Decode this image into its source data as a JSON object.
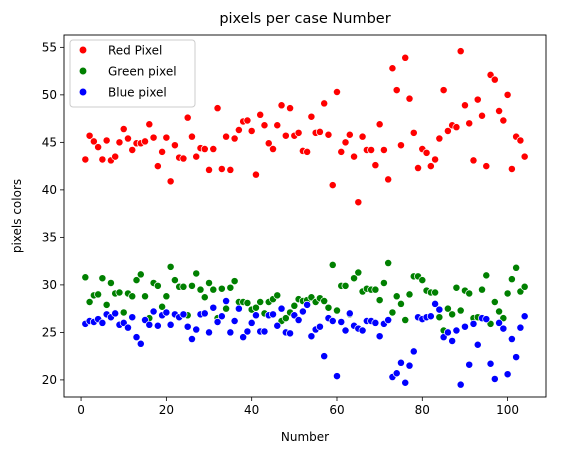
{
  "chart_data": {
    "type": "scatter",
    "title": "pixels per case Number",
    "xlabel": "Number",
    "ylabel": "pixels colors",
    "xlim": [
      -4,
      109
    ],
    "ylim": [
      18.2,
      56.3
    ],
    "xticks": [
      "0",
      "20",
      "40",
      "60",
      "80",
      "100"
    ],
    "xtick_values": [
      0,
      20,
      40,
      60,
      80,
      100
    ],
    "yticks": [
      "20",
      "25",
      "30",
      "35",
      "40",
      "45",
      "50",
      "55"
    ],
    "ytick_values": [
      20,
      25,
      30,
      35,
      40,
      45,
      50,
      55
    ],
    "grid": false,
    "legend_position": "upper-left",
    "series": [
      {
        "name": "Red Pixel",
        "color": "#ff0000",
        "points": [
          [
            1,
            43.2
          ],
          [
            2,
            45.7
          ],
          [
            3,
            45.1
          ],
          [
            4,
            44.5
          ],
          [
            5,
            43.2
          ],
          [
            6,
            45.2
          ],
          [
            7,
            43.1
          ],
          [
            8,
            43.5
          ],
          [
            9,
            45.0
          ],
          [
            10,
            46.4
          ],
          [
            11,
            45.4
          ],
          [
            12,
            44.2
          ],
          [
            13,
            44.9
          ],
          [
            14,
            44.9
          ],
          [
            15,
            45.1
          ],
          [
            16,
            46.9
          ],
          [
            17,
            45.5
          ],
          [
            18,
            42.5
          ],
          [
            19,
            44.0
          ],
          [
            20,
            45.5
          ],
          [
            21,
            40.9
          ],
          [
            22,
            44.7
          ],
          [
            23,
            43.4
          ],
          [
            24,
            43.3
          ],
          [
            25,
            47.6
          ],
          [
            26,
            45.6
          ],
          [
            27,
            43.5
          ],
          [
            28,
            44.4
          ],
          [
            29,
            44.3
          ],
          [
            30,
            42.1
          ],
          [
            31,
            44.3
          ],
          [
            32,
            48.6
          ],
          [
            33,
            42.2
          ],
          [
            34,
            45.6
          ],
          [
            35,
            42.1
          ],
          [
            36,
            45.4
          ],
          [
            37,
            46.3
          ],
          [
            38,
            47.2
          ],
          [
            39,
            47.3
          ],
          [
            40,
            46.2
          ],
          [
            41,
            41.6
          ],
          [
            42,
            47.9
          ],
          [
            43,
            46.8
          ],
          [
            44,
            44.9
          ],
          [
            45,
            44.3
          ],
          [
            46,
            46.8
          ],
          [
            47,
            48.9
          ],
          [
            48,
            45.7
          ],
          [
            49,
            48.6
          ],
          [
            50,
            45.7
          ],
          [
            51,
            46.0
          ],
          [
            52,
            44.1
          ],
          [
            53,
            44.0
          ],
          [
            54,
            47.7
          ],
          [
            55,
            46.0
          ],
          [
            56,
            46.1
          ],
          [
            57,
            49.1
          ],
          [
            58,
            45.8
          ],
          [
            59,
            40.5
          ],
          [
            60,
            50.3
          ],
          [
            61,
            44.0
          ],
          [
            62,
            45.0
          ],
          [
            63,
            45.8
          ],
          [
            64,
            43.5
          ],
          [
            65,
            38.7
          ],
          [
            66,
            45.6
          ],
          [
            67,
            44.2
          ],
          [
            68,
            44.2
          ],
          [
            69,
            42.6
          ],
          [
            70,
            46.9
          ],
          [
            71,
            44.2
          ],
          [
            72,
            41.1
          ],
          [
            73,
            52.8
          ],
          [
            74,
            50.5
          ],
          [
            75,
            44.7
          ],
          [
            76,
            53.9
          ],
          [
            77,
            49.6
          ],
          [
            78,
            46.0
          ],
          [
            79,
            42.3
          ],
          [
            80,
            44.3
          ],
          [
            81,
            43.9
          ],
          [
            82,
            42.5
          ],
          [
            83,
            43.2
          ],
          [
            84,
            45.4
          ],
          [
            85,
            50.5
          ],
          [
            86,
            46.2
          ],
          [
            87,
            46.8
          ],
          [
            88,
            46.6
          ],
          [
            89,
            54.6
          ],
          [
            90,
            48.9
          ],
          [
            91,
            47.0
          ],
          [
            92,
            43.1
          ],
          [
            93,
            49.5
          ],
          [
            94,
            47.8
          ],
          [
            95,
            42.5
          ],
          [
            96,
            52.1
          ],
          [
            97,
            51.6
          ],
          [
            98,
            48.3
          ],
          [
            99,
            47.3
          ],
          [
            100,
            50.0
          ],
          [
            101,
            42.2
          ],
          [
            102,
            45.6
          ],
          [
            103,
            45.2
          ],
          [
            104,
            43.5
          ]
        ]
      },
      {
        "name": "Green pixel",
        "color": "#008000",
        "points": [
          [
            1,
            30.8
          ],
          [
            2,
            28.2
          ],
          [
            3,
            28.9
          ],
          [
            4,
            29.0
          ],
          [
            5,
            30.7
          ],
          [
            6,
            27.9
          ],
          [
            7,
            30.2
          ],
          [
            8,
            29.1
          ],
          [
            9,
            29.2
          ],
          [
            10,
            27.1
          ],
          [
            11,
            29.1
          ],
          [
            12,
            28.8
          ],
          [
            13,
            30.5
          ],
          [
            14,
            31.1
          ],
          [
            15,
            28.8
          ],
          [
            16,
            26.5
          ],
          [
            17,
            30.2
          ],
          [
            18,
            29.9
          ],
          [
            19,
            27.7
          ],
          [
            20,
            28.8
          ],
          [
            21,
            31.9
          ],
          [
            22,
            30.5
          ],
          [
            23,
            29.8
          ],
          [
            24,
            29.8
          ],
          [
            25,
            26.8
          ],
          [
            26,
            29.9
          ],
          [
            27,
            31.2
          ],
          [
            28,
            29.5
          ],
          [
            29,
            28.7
          ],
          [
            30,
            30.2
          ],
          [
            31,
            29.5
          ],
          [
            32,
            26.5
          ],
          [
            33,
            29.6
          ],
          [
            34,
            27.5
          ],
          [
            35,
            29.7
          ],
          [
            36,
            30.4
          ],
          [
            37,
            28.2
          ],
          [
            38,
            28.2
          ],
          [
            39,
            28.1
          ],
          [
            40,
            27.4
          ],
          [
            41,
            27.6
          ],
          [
            42,
            28.2
          ],
          [
            43,
            27.0
          ],
          [
            44,
            28.2
          ],
          [
            45,
            28.5
          ],
          [
            46,
            28.9
          ],
          [
            47,
            26.2
          ],
          [
            48,
            26.5
          ],
          [
            49,
            27.1
          ],
          [
            50,
            27.8
          ],
          [
            51,
            28.5
          ],
          [
            52,
            28.3
          ],
          [
            53,
            28.4
          ],
          [
            54,
            28.7
          ],
          [
            55,
            28.2
          ],
          [
            56,
            28.6
          ],
          [
            57,
            28.3
          ],
          [
            58,
            27.6
          ],
          [
            59,
            32.1
          ],
          [
            60,
            27.3
          ],
          [
            61,
            29.9
          ],
          [
            62,
            29.9
          ],
          [
            63,
            26.9
          ],
          [
            64,
            30.7
          ],
          [
            65,
            31.3
          ],
          [
            66,
            29.3
          ],
          [
            67,
            29.6
          ],
          [
            68,
            29.5
          ],
          [
            69,
            29.5
          ],
          [
            70,
            28.4
          ],
          [
            71,
            30.2
          ],
          [
            72,
            32.3
          ],
          [
            73,
            27.1
          ],
          [
            74,
            28.8
          ],
          [
            75,
            28.0
          ],
          [
            76,
            26.3
          ],
          [
            77,
            29.0
          ],
          [
            78,
            30.9
          ],
          [
            79,
            30.9
          ],
          [
            80,
            30.5
          ],
          [
            81,
            29.4
          ],
          [
            82,
            29.2
          ],
          [
            83,
            29.2
          ],
          [
            84,
            26.6
          ],
          [
            85,
            25.2
          ],
          [
            86,
            27.5
          ],
          [
            87,
            26.9
          ],
          [
            88,
            29.7
          ],
          [
            89,
            27.3
          ],
          [
            90,
            29.4
          ],
          [
            91,
            29.1
          ],
          [
            92,
            26.5
          ],
          [
            93,
            26.6
          ],
          [
            94,
            29.5
          ],
          [
            95,
            31.0
          ],
          [
            96,
            25.9
          ],
          [
            97,
            28.2
          ],
          [
            98,
            27.2
          ],
          [
            99,
            26.5
          ],
          [
            100,
            29.1
          ],
          [
            101,
            30.6
          ],
          [
            102,
            31.8
          ],
          [
            103,
            29.3
          ],
          [
            104,
            29.8
          ]
        ]
      },
      {
        "name": "Blue pixel",
        "color": "#0000ff",
        "points": [
          [
            1,
            25.9
          ],
          [
            2,
            26.2
          ],
          [
            3,
            26.1
          ],
          [
            4,
            26.4
          ],
          [
            5,
            26.0
          ],
          [
            6,
            26.9
          ],
          [
            7,
            26.6
          ],
          [
            8,
            27.0
          ],
          [
            9,
            25.8
          ],
          [
            10,
            26.0
          ],
          [
            11,
            25.5
          ],
          [
            12,
            26.6
          ],
          [
            13,
            24.5
          ],
          [
            14,
            23.8
          ],
          [
            15,
            26.3
          ],
          [
            16,
            25.8
          ],
          [
            17,
            27.2
          ],
          [
            18,
            25.7
          ],
          [
            19,
            26.8
          ],
          [
            20,
            27.1
          ],
          [
            21,
            25.8
          ],
          [
            22,
            26.9
          ],
          [
            23,
            26.6
          ],
          [
            24,
            26.9
          ],
          [
            25,
            25.6
          ],
          [
            26,
            24.3
          ],
          [
            27,
            25.3
          ],
          [
            28,
            26.9
          ],
          [
            29,
            27.0
          ],
          [
            30,
            25.0
          ],
          [
            31,
            27.6
          ],
          [
            32,
            26.1
          ],
          [
            33,
            26.7
          ],
          [
            34,
            28.3
          ],
          [
            35,
            25.0
          ],
          [
            36,
            26.2
          ],
          [
            37,
            27.5
          ],
          [
            38,
            24.5
          ],
          [
            39,
            25.1
          ],
          [
            40,
            26.0
          ],
          [
            41,
            26.8
          ],
          [
            42,
            25.1
          ],
          [
            43,
            25.1
          ],
          [
            44,
            26.8
          ],
          [
            45,
            26.9
          ],
          [
            46,
            25.7
          ],
          [
            47,
            27.5
          ],
          [
            48,
            25.0
          ],
          [
            49,
            24.9
          ],
          [
            50,
            26.8
          ],
          [
            51,
            26.3
          ],
          [
            52,
            27.2
          ],
          [
            53,
            27.9
          ],
          [
            54,
            24.6
          ],
          [
            55,
            25.3
          ],
          [
            56,
            25.6
          ],
          [
            57,
            22.5
          ],
          [
            58,
            26.5
          ],
          [
            59,
            26.2
          ],
          [
            60,
            20.4
          ],
          [
            61,
            26.1
          ],
          [
            62,
            25.2
          ],
          [
            63,
            27.0
          ],
          [
            64,
            25.7
          ],
          [
            65,
            25.4
          ],
          [
            66,
            25.2
          ],
          [
            67,
            26.2
          ],
          [
            68,
            26.2
          ],
          [
            69,
            26.0
          ],
          [
            70,
            24.6
          ],
          [
            71,
            25.9
          ],
          [
            72,
            26.3
          ],
          [
            73,
            20.3
          ],
          [
            74,
            20.7
          ],
          [
            75,
            21.8
          ],
          [
            76,
            19.7
          ],
          [
            77,
            21.5
          ],
          [
            78,
            23.0
          ],
          [
            79,
            26.6
          ],
          [
            80,
            26.4
          ],
          [
            81,
            26.6
          ],
          [
            82,
            26.7
          ],
          [
            83,
            28.0
          ],
          [
            84,
            27.4
          ],
          [
            85,
            24.5
          ],
          [
            86,
            25.0
          ],
          [
            87,
            24.1
          ],
          [
            88,
            25.2
          ],
          [
            89,
            19.5
          ],
          [
            90,
            25.6
          ],
          [
            91,
            21.6
          ],
          [
            92,
            25.9
          ],
          [
            93,
            23.7
          ],
          [
            94,
            26.5
          ],
          [
            95,
            26.4
          ],
          [
            96,
            21.7
          ],
          [
            97,
            20.1
          ],
          [
            98,
            26.0
          ],
          [
            99,
            25.4
          ],
          [
            100,
            20.6
          ],
          [
            101,
            24.3
          ],
          [
            102,
            22.4
          ],
          [
            103,
            25.5
          ],
          [
            104,
            26.7
          ]
        ]
      }
    ]
  }
}
